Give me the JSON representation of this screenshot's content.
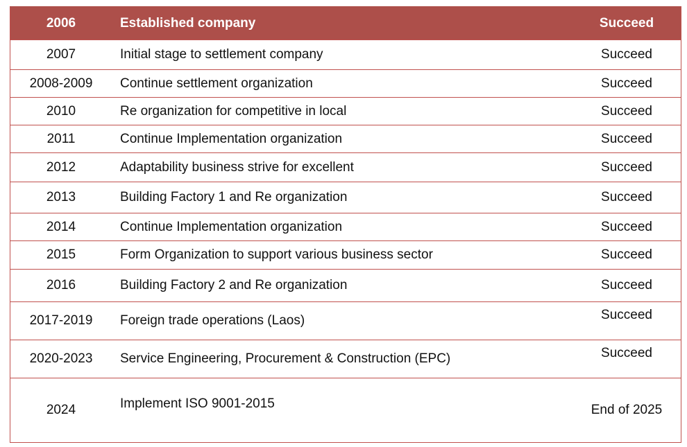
{
  "header": {
    "year": "2006",
    "description": "Established company",
    "status": "Succeed"
  },
  "rows": [
    {
      "year": "2007",
      "description": "Initial  stage to settlement company",
      "status": "Succeed"
    },
    {
      "year": "2008-2009",
      "description": "Continue  settlement organization",
      "status": "Succeed"
    },
    {
      "year": "2010",
      "description": "Re organization for competitive in local",
      "status": "Succeed"
    },
    {
      "year": "2011",
      "description": "Continue  Implementation organization",
      "status": "Succeed"
    },
    {
      "year": "2012",
      "description": "Adaptability  business strive for excellent",
      "status": "Succeed"
    },
    {
      "year": "2013",
      "description": "Building Factory 1 and Re organization",
      "status": "Succeed"
    },
    {
      "year": "2014",
      "description": "Continue  Implementation organization",
      "status": "Succeed"
    },
    {
      "year": "2015",
      "description": "Form Organization to support various business sector",
      "status": "Succeed"
    },
    {
      "year": "2016",
      "description": "Building  Factory 2 and Re organization",
      "status": "Succeed"
    },
    {
      "year": "2017-2019",
      "description": "Foreign trade operations (Laos)",
      "status": "Succeed"
    },
    {
      "year": "2020-2023",
      "description": "Service Engineering, Procurement & Construction (EPC)",
      "status": "Succeed"
    },
    {
      "year": "2024",
      "description": "Implement ISO 9001-2015",
      "status": "End of 2025"
    }
  ]
}
